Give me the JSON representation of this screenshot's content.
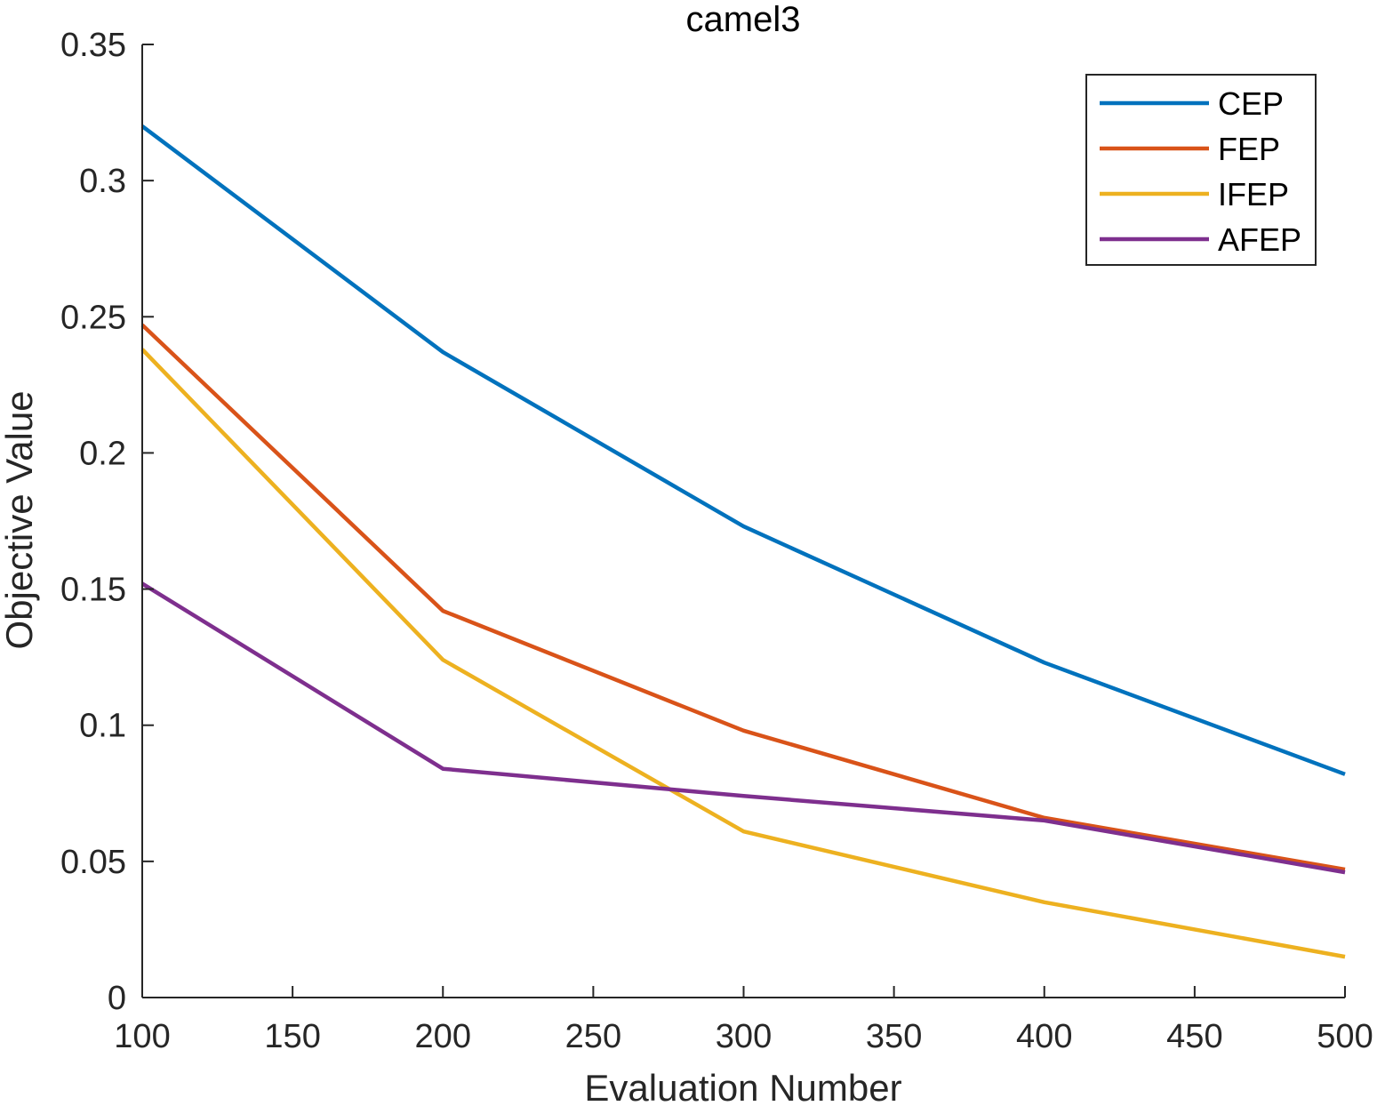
{
  "chart_data": {
    "type": "line",
    "title": "camel3",
    "xlabel": "Evaluation Number",
    "ylabel": "Objective Value",
    "x": [
      100,
      200,
      300,
      400,
      500
    ],
    "xlim": [
      100,
      500
    ],
    "ylim": [
      0,
      0.35
    ],
    "xticks": [
      100,
      150,
      200,
      250,
      300,
      350,
      400,
      450,
      500
    ],
    "xtick_labels": [
      "100",
      "150",
      "200",
      "250",
      "300",
      "350",
      "400",
      "450",
      "500"
    ],
    "yticks": [
      0,
      0.05,
      0.1,
      0.15,
      0.2,
      0.25,
      0.3,
      0.35
    ],
    "ytick_labels": [
      "0",
      "0.05",
      "0.1",
      "0.15",
      "0.2",
      "0.25",
      "0.3",
      "0.35"
    ],
    "grid": false,
    "legend_position": "top-right",
    "series": [
      {
        "name": "CEP",
        "color": "#0072BD",
        "values": [
          0.32,
          0.237,
          0.173,
          0.123,
          0.082
        ]
      },
      {
        "name": "FEP",
        "color": "#D95319",
        "values": [
          0.247,
          0.142,
          0.098,
          0.066,
          0.047
        ]
      },
      {
        "name": "IFEP",
        "color": "#EDB120",
        "values": [
          0.238,
          0.124,
          0.061,
          0.035,
          0.015
        ]
      },
      {
        "name": "AFEP",
        "color": "#7E2F8E",
        "values": [
          0.152,
          0.084,
          0.074,
          0.065,
          0.046
        ]
      }
    ]
  }
}
